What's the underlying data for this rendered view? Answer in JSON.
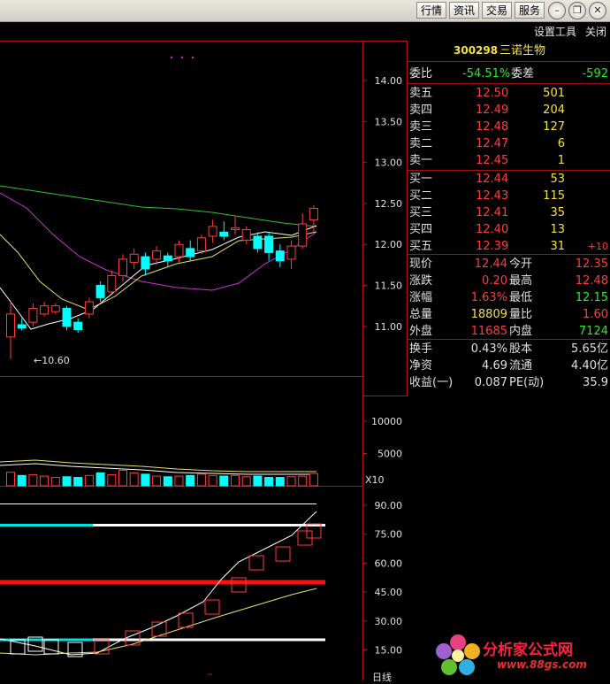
{
  "menu": {
    "hangqing": "行情",
    "zixun": "资讯",
    "jiaoyi": "交易",
    "fuwu": "服务"
  },
  "window_controls": {
    "minimize": "–",
    "restore": "❐",
    "close": "✕"
  },
  "toolbar": {
    "settings": "设置工具",
    "close": "关闭"
  },
  "stock": {
    "code": "300298",
    "name": "三诺生物"
  },
  "price_axis": [
    "14.00",
    "13.50",
    "13.00",
    "12.50",
    "12.00",
    "11.50",
    "11.00"
  ],
  "low_marker": "←10.60",
  "volume_axis": [
    "10000",
    "5000"
  ],
  "volume_unit": "X10",
  "indicator_axis": [
    "90.00",
    "75.00",
    "60.00",
    "45.00",
    "30.00",
    "15.00"
  ],
  "bottom_right_label": "日线",
  "quote": {
    "weibi_label": "委比",
    "weibi_value": "-54.51%",
    "weicha_label": "委差",
    "weicha_value": "-592",
    "asks": [
      {
        "label": "卖五",
        "price": "12.50",
        "vol": "501"
      },
      {
        "label": "卖四",
        "price": "12.49",
        "vol": "204"
      },
      {
        "label": "卖三",
        "price": "12.48",
        "vol": "127"
      },
      {
        "label": "卖二",
        "price": "12.47",
        "vol": "6"
      },
      {
        "label": "卖一",
        "price": "12.45",
        "vol": "1"
      }
    ],
    "bids": [
      {
        "label": "买一",
        "price": "12.44",
        "vol": "53",
        "delta": ""
      },
      {
        "label": "买二",
        "price": "12.43",
        "vol": "115",
        "delta": ""
      },
      {
        "label": "买三",
        "price": "12.41",
        "vol": "35",
        "delta": ""
      },
      {
        "label": "买四",
        "price": "12.40",
        "vol": "13",
        "delta": ""
      },
      {
        "label": "买五",
        "price": "12.39",
        "vol": "31",
        "delta": "+10"
      }
    ],
    "stats": [
      {
        "l1": "现价",
        "v1": "12.44",
        "l2": "今开",
        "v2": "12.35"
      },
      {
        "l1": "涨跌",
        "v1": "0.20",
        "l2": "最高",
        "v2": "12.48"
      },
      {
        "l1": "涨幅",
        "v1": "1.63%",
        "l2": "最低",
        "v2": "12.15"
      },
      {
        "l1": "总量",
        "v1": "18809",
        "l2": "量比",
        "v2": "1.60"
      },
      {
        "l1": "外盘",
        "v1": "11685",
        "l2": "内盘",
        "v2": "7124"
      }
    ],
    "fund": [
      {
        "l1": "换手",
        "v1": "0.43%",
        "l2": "股本",
        "v2": "5.65亿"
      },
      {
        "l1": "净资",
        "v1": "4.69",
        "l2": "流通",
        "v2": "4.40亿"
      },
      {
        "l1": "收益(一)",
        "v1": "0.087",
        "l2": "PE(动)",
        "v2": "35.9"
      }
    ]
  },
  "watermark": {
    "text": "分析家公式网",
    "url": "www.88gs.com"
  },
  "colors": {
    "up": "#ff3c3c",
    "down": "#00ffff",
    "price_text": "#e0e0e0",
    "axis_red": "#b01414"
  }
}
